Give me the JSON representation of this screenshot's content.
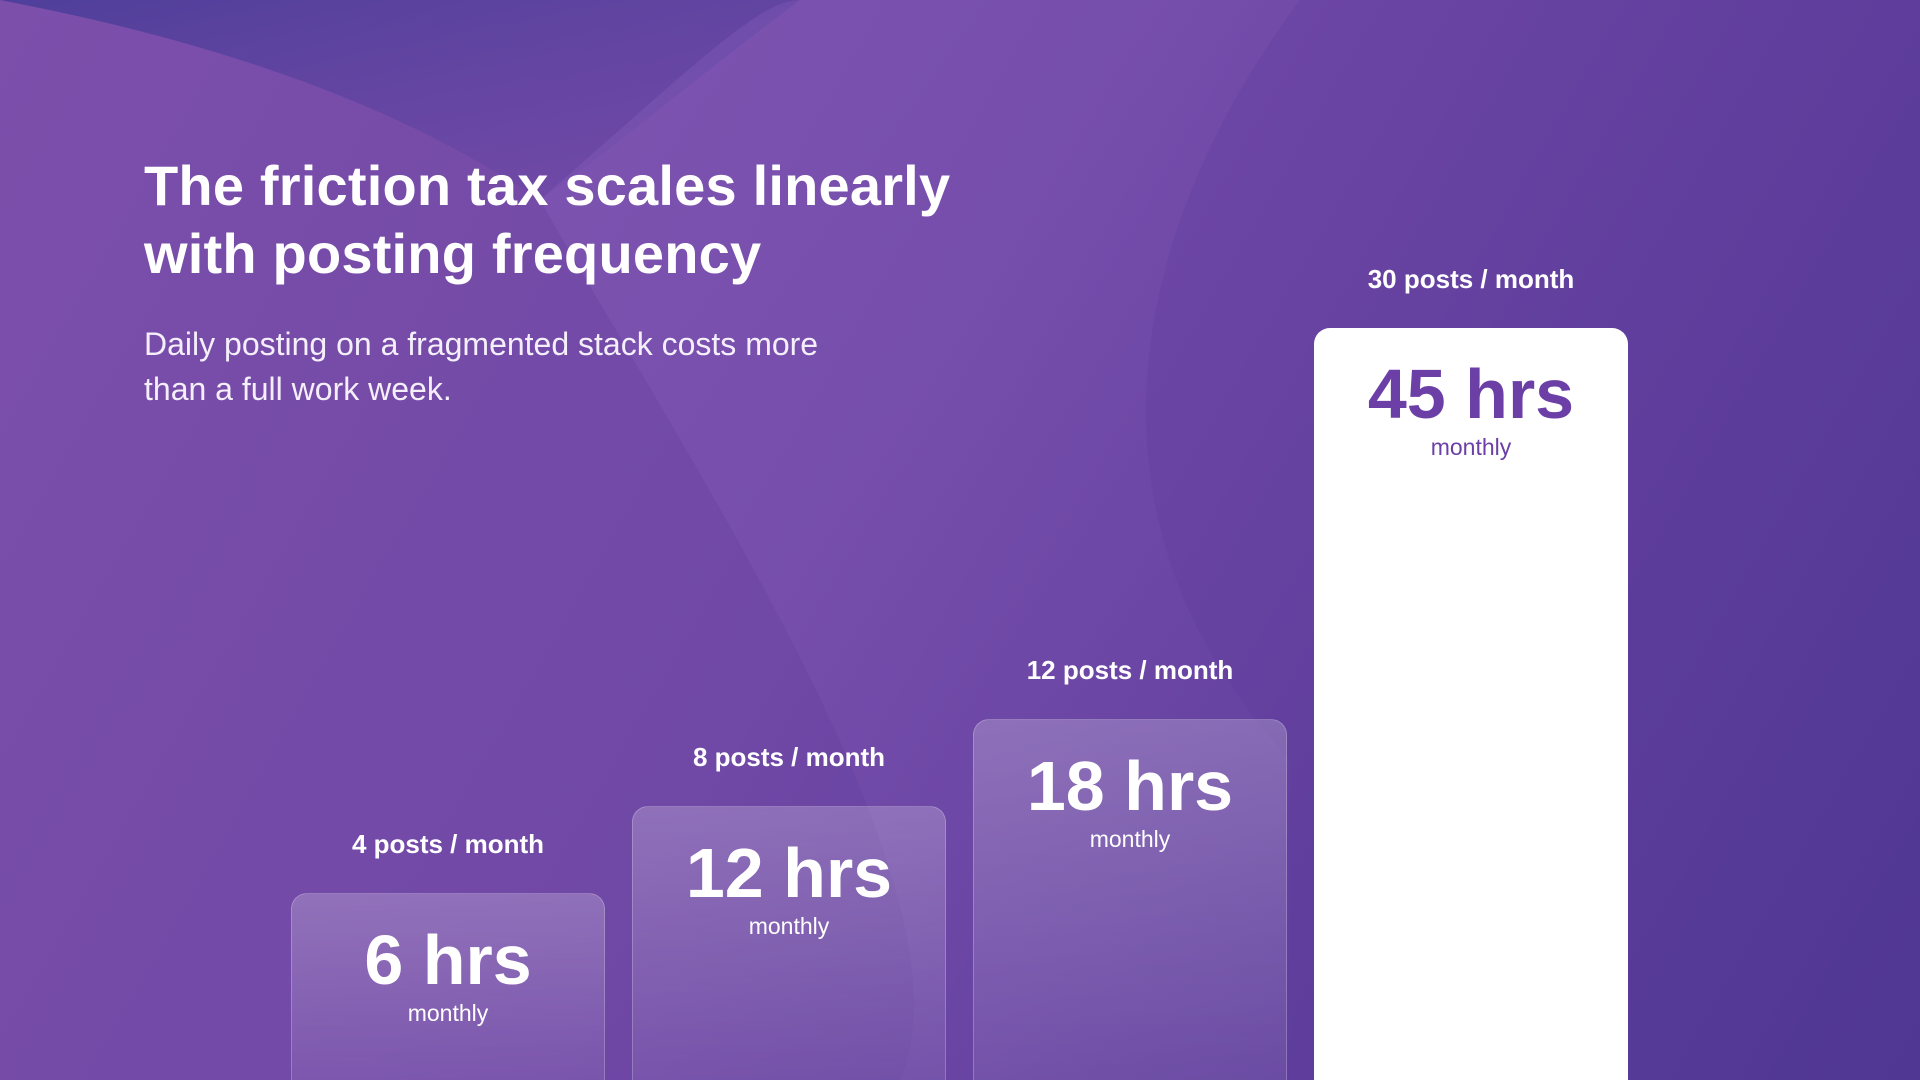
{
  "colors": {
    "background": "#7048a6",
    "highlight_bar": "#ffffff",
    "highlight_text": "#6b3fa6"
  },
  "header": {
    "title": "The friction tax scales linearly with posting frequency",
    "subtitle": "Daily posting on a fragmented stack costs more than a full work week."
  },
  "chart_data": {
    "type": "bar",
    "categories": [
      "4 posts / month",
      "8 posts / month",
      "12 posts / month",
      "30 posts / month"
    ],
    "values": [
      6,
      12,
      18,
      45
    ],
    "value_labels": [
      "6 hrs",
      "12 hrs",
      "18 hrs",
      "45 hrs"
    ],
    "unit_label": "monthly",
    "highlight_index": 3,
    "ylim": [
      0,
      48
    ],
    "grid": false,
    "legend": "none"
  }
}
